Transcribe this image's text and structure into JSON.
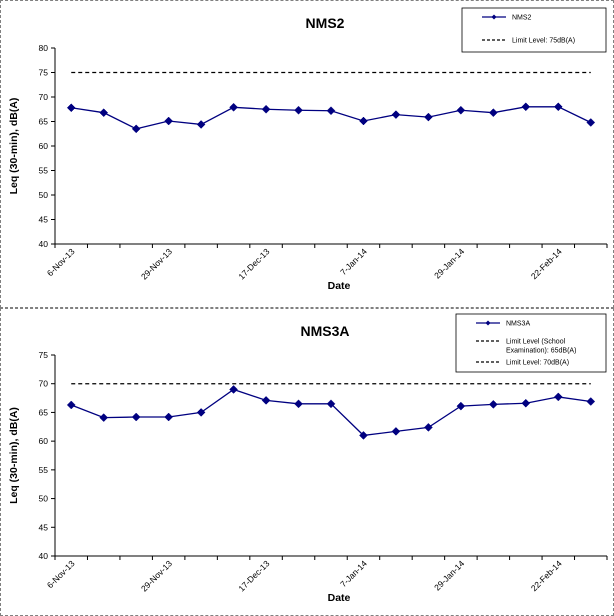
{
  "chart_data": [
    {
      "type": "line",
      "title": "NMS2",
      "xlabel": "Date",
      "ylabel": "Leq (30-min), dB(A)",
      "ylim": [
        40,
        80
      ],
      "yticks": [
        40,
        45,
        50,
        55,
        60,
        65,
        70,
        75,
        80
      ],
      "tick_labels": [
        "6-Nov-13",
        "29-Nov-13",
        "17-Dec-13",
        "7-Jan-14",
        "29-Jan-14",
        "22-Feb-14"
      ],
      "legend_position": "top-right",
      "series": [
        {
          "name": "NMS2",
          "style": "line-marker",
          "color": "#000080",
          "values": [
            67.8,
            66.8,
            63.5,
            65.1,
            64.4,
            67.9,
            67.5,
            67.3,
            67.2,
            65.1,
            66.4,
            65.9,
            67.3,
            66.8,
            68.0,
            68.0,
            64.8
          ]
        },
        {
          "name": "Limit Level: 75dB(A)",
          "style": "dashed",
          "color": "#000000",
          "values": [
            75,
            75,
            75,
            75,
            75,
            75,
            75,
            75,
            75,
            75,
            75,
            75,
            75,
            75,
            75,
            75,
            75
          ]
        }
      ]
    },
    {
      "type": "line",
      "title": "NMS3A",
      "xlabel": "Date",
      "ylabel": "Leq (30-min), dB(A)",
      "ylim": [
        40,
        75
      ],
      "yticks": [
        40,
        45,
        50,
        55,
        60,
        65,
        70,
        75
      ],
      "tick_labels": [
        "6-Nov-13",
        "29-Nov-13",
        "17-Dec-13",
        "7-Jan-14",
        "29-Jan-14",
        "22-Feb-14"
      ],
      "legend_position": "top-right",
      "series": [
        {
          "name": "NMS3A",
          "style": "line-marker",
          "color": "#000080",
          "values": [
            66.3,
            64.1,
            64.2,
            64.2,
            65.0,
            69.0,
            67.1,
            66.5,
            66.5,
            61.0,
            61.7,
            62.4,
            66.1,
            66.4,
            66.6,
            67.7,
            66.9
          ]
        },
        {
          "name": "Limit Level (School Examination): 65dB(A)",
          "legend_lines": [
            "Limit Level (School",
            "Examination): 65dB(A)"
          ],
          "style": "dashed",
          "color": "#000000",
          "values": []
        },
        {
          "name": "Limit Level: 70dB(A)",
          "style": "dashed",
          "color": "#000000",
          "values": [
            70,
            70,
            70,
            70,
            70,
            70,
            70,
            70,
            70,
            70,
            70,
            70,
            70,
            70,
            70,
            70,
            70
          ]
        }
      ]
    }
  ]
}
